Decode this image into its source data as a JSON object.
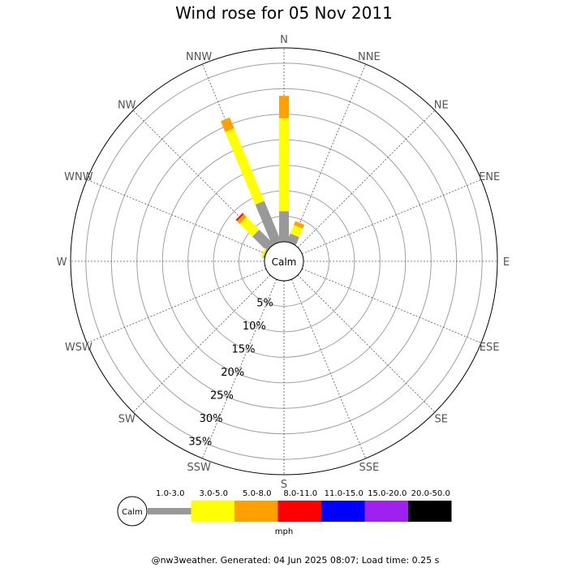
{
  "chart_data": {
    "type": "windrose",
    "title": "Wind rose for 05 Nov 2011",
    "directions": [
      "N",
      "NNE",
      "NE",
      "ENE",
      "E",
      "ESE",
      "SE",
      "SSE",
      "S",
      "SSW",
      "SW",
      "WSW",
      "W",
      "WNW",
      "NW",
      "NNW"
    ],
    "ring_labels": [
      "5%",
      "10%",
      "15%",
      "20%",
      "25%",
      "30%",
      "35%"
    ],
    "rmax_percent": 38,
    "calm_label": "Calm",
    "unit": "mph",
    "speed_bins": [
      {
        "label": "1.0-3.0",
        "color": "#999999"
      },
      {
        "label": "3.0-5.0",
        "color": "#ffff00"
      },
      {
        "label": "5.0-8.0",
        "color": "#ffa000"
      },
      {
        "label": "8.0-11.0",
        "color": "#ff0000"
      },
      {
        "label": "11.0-15.0",
        "color": "#0000ff"
      },
      {
        "label": "15.0-20.0",
        "color": "#a020f0"
      },
      {
        "label": "20.0-50.0",
        "color": "#000000"
      }
    ],
    "series": [
      {
        "direction": "N",
        "values": [
          6.0,
          18.2,
          4.4,
          0,
          0,
          0,
          0
        ]
      },
      {
        "direction": "NNE",
        "values": [
          1.7,
          1.8,
          0.8,
          0,
          0,
          0,
          0
        ]
      },
      {
        "direction": "NW",
        "values": [
          4.0,
          3.5,
          0.8,
          0.3,
          0,
          0,
          0
        ]
      },
      {
        "direction": "NNW",
        "values": [
          8.6,
          15.4,
          2.3,
          0,
          0,
          0,
          0
        ]
      },
      {
        "direction": "WNW",
        "values": [
          0.3,
          0.4,
          0,
          0,
          0,
          0,
          0
        ]
      }
    ]
  },
  "footer": "@nw3weather. Generated: 04 Jun 2025 08:07; Load time: 0.25 s"
}
